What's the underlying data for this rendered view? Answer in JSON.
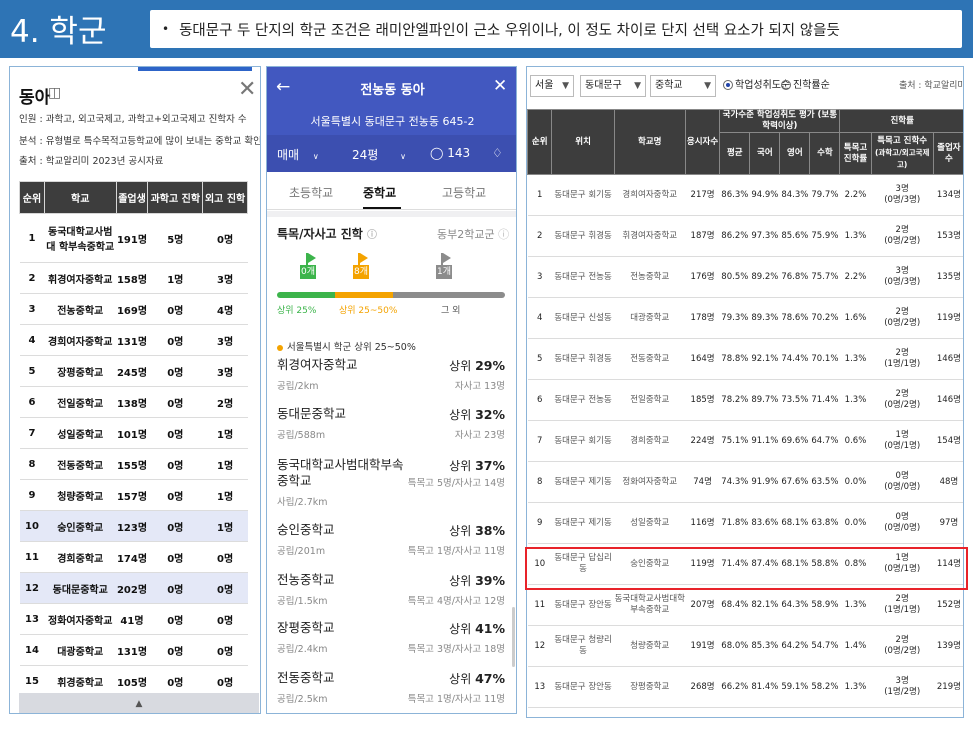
{
  "header": {
    "title": "4. 학군",
    "summary": "동대문구 두 단지의 학군 조건은 래미안엘파인이 근소 우위이나, 이 정도 차이로 단지 선택 요소가 되지 않을듯"
  },
  "panel1": {
    "title": "동아",
    "notes": [
      "인원 : 과학고, 외고국제고, 과학고+외고국제고 진학자 수",
      "분석 : 유형별로 특수목적고등학교에 많이 보내는 중학교 확인",
      "출처 : 학교알리미 2023년 공시자료"
    ],
    "columns": [
      "순위",
      "학교",
      "졸업생",
      "과학고 진학",
      "외고 진학"
    ],
    "rows": [
      [
        "1",
        "동국대학교사범대 학부속중학교",
        "191명",
        "5명",
        "0명"
      ],
      [
        "2",
        "휘경여자중학교",
        "158명",
        "1명",
        "3명"
      ],
      [
        "3",
        "전농중학교",
        "169명",
        "0명",
        "4명"
      ],
      [
        "4",
        "경희여자중학교",
        "131명",
        "0명",
        "3명"
      ],
      [
        "5",
        "장평중학교",
        "245명",
        "0명",
        "3명"
      ],
      [
        "6",
        "전일중학교",
        "138명",
        "0명",
        "2명"
      ],
      [
        "7",
        "성일중학교",
        "101명",
        "0명",
        "1명"
      ],
      [
        "8",
        "전동중학교",
        "155명",
        "0명",
        "1명"
      ],
      [
        "9",
        "청량중학교",
        "157명",
        "0명",
        "1명"
      ],
      [
        "10",
        "숭인중학교",
        "123명",
        "0명",
        "1명"
      ],
      [
        "11",
        "경희중학교",
        "174명",
        "0명",
        "0명"
      ],
      [
        "12",
        "동대문중학교",
        "202명",
        "0명",
        "0명"
      ],
      [
        "13",
        "정화여자중학교",
        "41명",
        "0명",
        "0명"
      ],
      [
        "14",
        "대광중학교",
        "131명",
        "0명",
        "0명"
      ],
      [
        "15",
        "휘경중학교",
        "105명",
        "0명",
        "0명"
      ]
    ]
  },
  "panel2": {
    "title": "전농동 동아",
    "address": "서울특별시 동대문구 전농동 645-2",
    "deal": "매매",
    "size": "24평",
    "comments": "143",
    "tabs": [
      "초등학교",
      "중학교",
      "고등학교"
    ],
    "section": "특목/자사고 진학",
    "district": "동부2학교군",
    "counts": [
      "0개",
      "8개",
      "1개"
    ],
    "prog_labels": [
      "상위 25%",
      "상위 25~50%",
      "그 외"
    ],
    "source": "서울특별시 학군 상위 25~50%",
    "schools": [
      {
        "name": "휘경여자중학교",
        "rank_prefix": "상위",
        "rank": "29%",
        "sub": "공립/2km",
        "detail": "자사고 13명"
      },
      {
        "name": "동대문중학교",
        "rank_prefix": "상위",
        "rank": "32%",
        "sub": "공립/588m",
        "detail": "자사고 23명"
      },
      {
        "name": "동국대학교사범대학부속중학교",
        "rank_prefix": "상위",
        "rank": "37%",
        "sub": "사립/2.7km",
        "detail": "특목고 5명/자사고 14명"
      },
      {
        "name": "숭인중학교",
        "rank_prefix": "상위",
        "rank": "38%",
        "sub": "공립/201m",
        "detail": "특목고 1명/자사고 11명"
      },
      {
        "name": "전농중학교",
        "rank_prefix": "상위",
        "rank": "39%",
        "sub": "공립/1.5km",
        "detail": "특목고 4명/자사고 12명"
      },
      {
        "name": "장평중학교",
        "rank_prefix": "상위",
        "rank": "41%",
        "sub": "공립/2.4km",
        "detail": "특목고 3명/자사고 18명"
      },
      {
        "name": "전동중학교",
        "rank_prefix": "상위",
        "rank": "47%",
        "sub": "공립/2.5km",
        "detail": "특목고 1명/자사고 11명"
      }
    ]
  },
  "panel3": {
    "filters": [
      "서울",
      "동대문구",
      "중학교"
    ],
    "radio_on": "학업성취도순",
    "radio_off": "진학률순",
    "source": "출처 : 학교알리미",
    "group_headers": {
      "achieve": "국가수준 학업성취도 평가 (보통학력이상)",
      "progress": "진학률"
    },
    "columns": {
      "rank": "순위",
      "loc": "위치",
      "school": "학교명",
      "students": "응시자수",
      "avg": "평균",
      "kor": "국어",
      "eng": "영어",
      "math": "수학",
      "sp_rate": "특목고 진학률",
      "sp_count": "특목고 진학수",
      "sp_count_sub": "(과학고/외고국제고)",
      "grad": "졸업자 수"
    },
    "rows": [
      [
        "1",
        "동대문구 회기동",
        "경희여자중학교",
        "217명",
        "86.3%",
        "94.9%",
        "84.3%",
        "79.7%",
        "2.2%",
        "3명",
        "(0명/3명)",
        "134명"
      ],
      [
        "2",
        "동대문구 휘경동",
        "휘경여자중학교",
        "187명",
        "86.2%",
        "97.3%",
        "85.6%",
        "75.9%",
        "1.3%",
        "2명",
        "(0명/2명)",
        "153명"
      ],
      [
        "3",
        "동대문구 전농동",
        "전농중학교",
        "176명",
        "80.5%",
        "89.2%",
        "76.8%",
        "75.7%",
        "2.2%",
        "3명",
        "(0명/3명)",
        "135명"
      ],
      [
        "4",
        "동대문구 신설동",
        "대광중학교",
        "178명",
        "79.3%",
        "89.3%",
        "78.6%",
        "70.2%",
        "1.6%",
        "2명",
        "(0명/2명)",
        "119명"
      ],
      [
        "5",
        "동대문구 휘경동",
        "전동중학교",
        "164명",
        "78.8%",
        "92.1%",
        "74.4%",
        "70.1%",
        "1.3%",
        "2명",
        "(1명/1명)",
        "146명"
      ],
      [
        "6",
        "동대문구 전농동",
        "전일중학교",
        "185명",
        "78.2%",
        "89.7%",
        "73.5%",
        "71.4%",
        "1.3%",
        "2명",
        "(0명/2명)",
        "146명"
      ],
      [
        "7",
        "동대문구 회기동",
        "경희중학교",
        "224명",
        "75.1%",
        "91.1%",
        "69.6%",
        "64.7%",
        "0.6%",
        "1명",
        "(0명/1명)",
        "154명"
      ],
      [
        "8",
        "동대문구 제기동",
        "정화여자중학교",
        "74명",
        "74.3%",
        "91.9%",
        "67.6%",
        "63.5%",
        "0.0%",
        "0명",
        "(0명/0명)",
        "48명"
      ],
      [
        "9",
        "동대문구 제기동",
        "성일중학교",
        "116명",
        "71.8%",
        "83.6%",
        "68.1%",
        "63.8%",
        "0.0%",
        "0명",
        "(0명/0명)",
        "97명"
      ],
      [
        "10",
        "동대문구 답십리동",
        "숭인중학교",
        "119명",
        "71.4%",
        "87.4%",
        "68.1%",
        "58.8%",
        "0.8%",
        "1명",
        "(0명/1명)",
        "114명"
      ],
      [
        "11",
        "동대문구 장안동",
        "동국대학교사범대학부속중학교",
        "207명",
        "68.4%",
        "82.1%",
        "64.3%",
        "58.9%",
        "1.3%",
        "2명",
        "(1명/1명)",
        "152명"
      ],
      [
        "12",
        "동대문구 청량리동",
        "청량중학교",
        "191명",
        "68.0%",
        "85.3%",
        "64.2%",
        "54.7%",
        "1.4%",
        "2명",
        "(0명/2명)",
        "139명"
      ],
      [
        "13",
        "동대문구 장안동",
        "장평중학교",
        "268명",
        "66.2%",
        "81.4%",
        "59.1%",
        "58.2%",
        "1.3%",
        "3명",
        "(1명/2명)",
        "219명"
      ]
    ]
  },
  "colors": {
    "header_bg": "#2e74b5",
    "app_blue": "#4258c0",
    "highlight": "#e8232a",
    "green": "#3cb44b",
    "orange": "#f4a300",
    "grey": "#8c8c8c"
  }
}
